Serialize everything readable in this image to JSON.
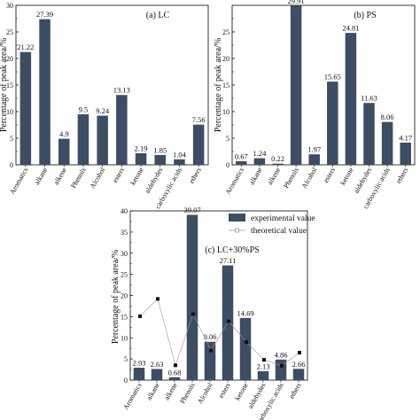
{
  "chart_data": [
    {
      "type": "bar",
      "title": "(a) LC",
      "ylabel": "Percentage of peak area/%",
      "ylim": [
        0,
        30
      ],
      "yticks": [
        0,
        5,
        10,
        15,
        20,
        25,
        30
      ],
      "categories": [
        "Aromatics",
        "alkane",
        "alkene",
        "Phenols",
        "Alcohol",
        "esters",
        "ketone",
        "aldehydes",
        "carboxylic acids",
        "ethers"
      ],
      "values": [
        21.22,
        27.39,
        4.9,
        9.5,
        9.24,
        13.13,
        2.19,
        1.85,
        1.04,
        7.56
      ],
      "labels": [
        "21.22",
        "27.39",
        "4.9",
        "9.5",
        "9.24",
        "13.13",
        "2.19",
        "1.85",
        "1.04",
        "7.56"
      ],
      "bar_color": "#3d4d63"
    },
    {
      "type": "bar",
      "title": "(b) PS",
      "ylabel": "Percentage of peak area/%",
      "ylim": [
        0,
        30
      ],
      "yticks": [
        0,
        5,
        10,
        15,
        20,
        25
      ],
      "categories": [
        "Aromatics",
        "alkane",
        "alkene",
        "Phenols",
        "Alcohol",
        "esters",
        "ketone",
        "aldehydes",
        "carboxylic acids",
        "ethers"
      ],
      "values": [
        0.67,
        1.24,
        0.22,
        29.91,
        1.97,
        15.65,
        24.81,
        11.63,
        8.06,
        4.17
      ],
      "labels": [
        "0.67",
        "1.24",
        "0.22",
        "29.91",
        "1.97",
        "15.65",
        "24.81",
        "11.63",
        "8.06",
        "4.17"
      ],
      "bar_color": "#3d4d63"
    },
    {
      "type": "bar",
      "title": "(c) LC+30%PS",
      "ylabel": "Percentage of peak area/%",
      "ylim": [
        0,
        40
      ],
      "yticks": [
        0,
        5,
        10,
        15,
        20,
        25,
        30,
        35,
        40
      ],
      "legend": [
        "experimental value",
        "theoretical value"
      ],
      "legend_position": "top-right",
      "categories": [
        "Aromatics",
        "alkane",
        "alkene",
        "Phenols",
        "Alcohol",
        "esters",
        "ketone",
        "aldehydes",
        "carboxylic acids",
        "ethers"
      ],
      "series": [
        {
          "name": "experimental value",
          "type": "bar",
          "values": [
            2.93,
            2.63,
            0.68,
            39.07,
            9.06,
            27.11,
            14.69,
            2.13,
            4.86,
            2.66
          ],
          "labels": [
            "2.93",
            "2.63",
            "0.68",
            "39.07",
            "9.06",
            "27.11",
            "14.69",
            "2.13",
            "4.86",
            "2.66"
          ],
          "color": "#3d4d63"
        },
        {
          "name": "theoretical value",
          "type": "line",
          "values": [
            15.1,
            19.2,
            3.5,
            15.6,
            7.0,
            13.9,
            9.0,
            4.8,
            3.4,
            6.5
          ],
          "color": "#111111"
        }
      ]
    }
  ]
}
